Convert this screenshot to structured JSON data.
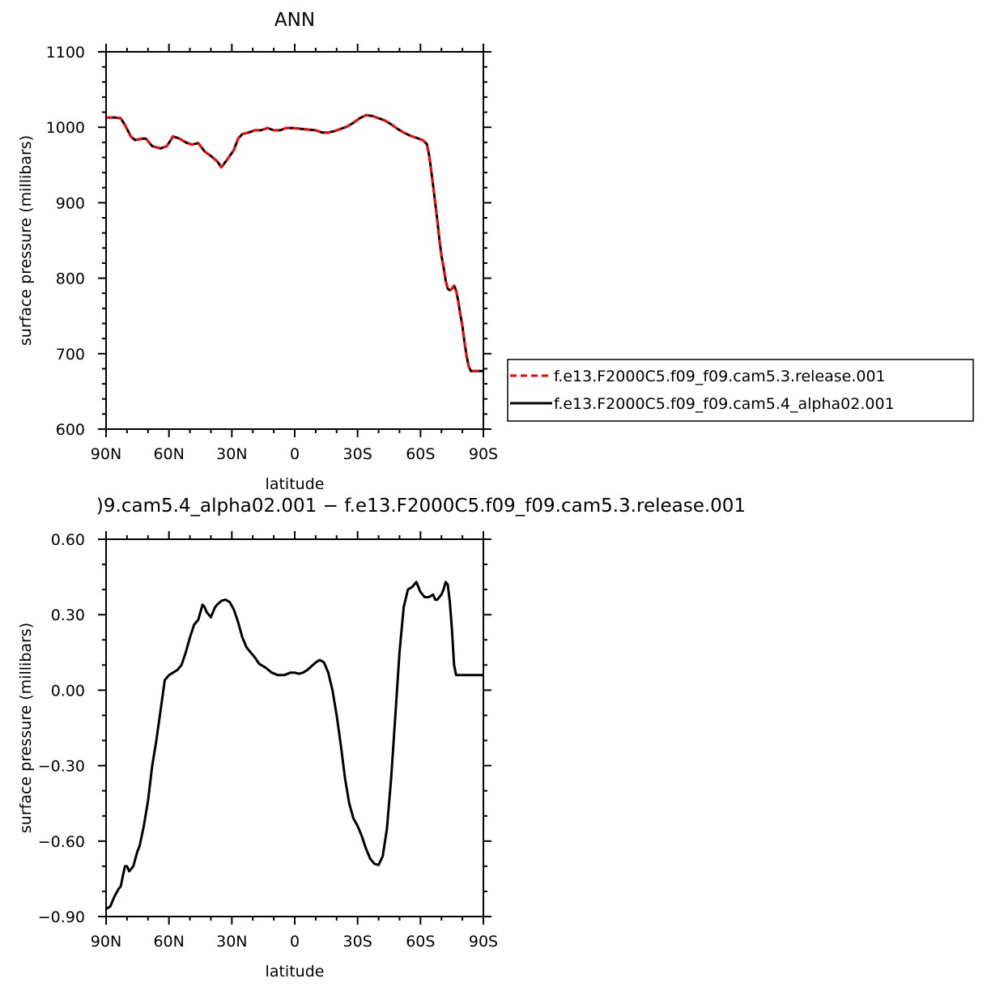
{
  "chart_data": [
    {
      "type": "line",
      "title": "ANN",
      "xlabel": "latitude",
      "ylabel": "surface pressure (millibars)",
      "xlim": [
        90,
        -90
      ],
      "ylim": [
        600,
        1100
      ],
      "x_ticks": [
        {
          "value": 90,
          "label": "90N"
        },
        {
          "value": 60,
          "label": "60N"
        },
        {
          "value": 30,
          "label": "30N"
        },
        {
          "value": 0,
          "label": "0"
        },
        {
          "value": -30,
          "label": "30S"
        },
        {
          "value": -60,
          "label": "60S"
        },
        {
          "value": -90,
          "label": "90S"
        }
      ],
      "y_ticks": [
        {
          "value": 1100,
          "label": "1100"
        },
        {
          "value": 1000,
          "label": "1000"
        },
        {
          "value": 900,
          "label": "900"
        },
        {
          "value": 800,
          "label": "800"
        },
        {
          "value": 700,
          "label": "700"
        },
        {
          "value": 600,
          "label": "600"
        }
      ],
      "legend_position": "right",
      "x": [
        90,
        86,
        83,
        81,
        78,
        76,
        73,
        71,
        68,
        64,
        61,
        58,
        55,
        52,
        49,
        46,
        43,
        40,
        37,
        35,
        32,
        29,
        27,
        25,
        22,
        19,
        16,
        13,
        10,
        7,
        4,
        1,
        -3,
        -6,
        -10,
        -13,
        -16,
        -19,
        -22,
        -25,
        -28,
        -31,
        -34,
        -37,
        -40,
        -43,
        -46,
        -49,
        -52,
        -55,
        -58,
        -61,
        -63,
        -64,
        -65,
        -66,
        -67,
        -68,
        -69,
        -70,
        -71,
        -72,
        -73,
        -74,
        -75,
        -76,
        -77,
        -78,
        -79,
        -80,
        -81,
        -82,
        -83,
        -84,
        -85,
        -86,
        -87,
        -88,
        -89,
        -90
      ],
      "series": [
        {
          "name": "f.e13.F2000C5.f09_f09.cam5.3.release.001",
          "color": "#ff0000",
          "dash": "dashed",
          "values": [
            1013,
            1013,
            1012,
            1003,
            987,
            983,
            985,
            985,
            975,
            972,
            975,
            988,
            985,
            980,
            977,
            979,
            968,
            962,
            955,
            947,
            958,
            970,
            985,
            991,
            993,
            996,
            996,
            999,
            996,
            996,
            999,
            999,
            998,
            997,
            996,
            993,
            993,
            995,
            998,
            1001,
            1006,
            1012,
            1016,
            1015,
            1012,
            1009,
            1004,
            998,
            993,
            989,
            986,
            983,
            978,
            965,
            945,
            923,
            900,
            878,
            852,
            830,
            815,
            797,
            786,
            784,
            786,
            790,
            784,
            770,
            752,
            737,
            715,
            697,
            683,
            677,
            677,
            677,
            677,
            677,
            677,
            677
          ]
        },
        {
          "name": "f.e13.F2000C5.f09_f09.cam5.4_alpha02.001",
          "color": "#000000",
          "dash": "solid",
          "values": [
            1013,
            1013,
            1012,
            1003,
            987,
            983,
            985,
            985,
            975,
            972,
            975,
            988,
            985,
            980,
            977,
            979,
            968,
            962,
            955,
            947,
            958,
            970,
            985,
            991,
            993,
            996,
            996,
            999,
            996,
            996,
            999,
            999,
            998,
            997,
            996,
            993,
            993,
            995,
            998,
            1001,
            1006,
            1012,
            1016,
            1015,
            1012,
            1009,
            1004,
            998,
            993,
            989,
            986,
            983,
            978,
            965,
            945,
            923,
            900,
            878,
            852,
            830,
            815,
            797,
            786,
            784,
            786,
            790,
            784,
            770,
            752,
            737,
            715,
            697,
            683,
            677,
            677,
            677,
            677,
            677,
            677,
            677
          ]
        }
      ]
    },
    {
      "type": "line",
      "title": ")9.cam5.4_alpha02.001 − f.e13.F2000C5.f09_f09.cam5.3.release.001",
      "xlabel": "latitude",
      "ylabel": "surface pressure (millibars)",
      "xlim": [
        90,
        -90
      ],
      "ylim": [
        -0.9,
        0.6
      ],
      "x_ticks": [
        {
          "value": 90,
          "label": "90N"
        },
        {
          "value": 60,
          "label": "60N"
        },
        {
          "value": 30,
          "label": "30N"
        },
        {
          "value": 0,
          "label": "0"
        },
        {
          "value": -30,
          "label": "30S"
        },
        {
          "value": -60,
          "label": "60S"
        },
        {
          "value": -90,
          "label": "90S"
        }
      ],
      "y_ticks": [
        {
          "value": 0.6,
          "label": "0.60"
        },
        {
          "value": 0.3,
          "label": "0.30"
        },
        {
          "value": 0.0,
          "label": "0.00"
        },
        {
          "value": -0.3,
          "label": "−0.30"
        },
        {
          "value": -0.6,
          "label": "−0.60"
        },
        {
          "value": -0.9,
          "label": "−0.90"
        }
      ],
      "x": [
        90,
        88,
        86,
        84,
        83,
        82,
        81,
        80,
        79,
        78,
        77,
        76,
        75,
        74,
        72,
        70,
        68,
        66,
        64,
        62,
        60,
        58,
        56,
        54,
        52,
        50,
        48,
        46,
        44,
        43,
        42,
        40,
        38,
        37,
        35,
        33,
        31,
        29,
        27,
        25,
        23,
        21,
        19,
        17,
        14,
        11,
        8,
        5,
        2,
        0,
        -2,
        -4,
        -6,
        -8,
        -10,
        -12,
        -14,
        -16,
        -18,
        -20,
        -22,
        -24,
        -26,
        -28,
        -30,
        -32,
        -34,
        -36,
        -38,
        -40,
        -42,
        -44,
        -46,
        -48,
        -50,
        -52,
        -54,
        -56,
        -58,
        -60,
        -62,
        -64,
        -66,
        -67,
        -68,
        -69,
        -70,
        -71,
        -72,
        -73,
        -74,
        -75,
        -76,
        -77,
        -78,
        -79,
        -80,
        -81,
        -82,
        -83,
        -84,
        -85,
        -86,
        -87,
        -88,
        -89,
        -90
      ],
      "series": [
        {
          "name": "",
          "color": "#000000",
          "dash": "solid",
          "values": [
            -0.87,
            -0.86,
            -0.82,
            -0.79,
            -0.78,
            -0.74,
            -0.7,
            -0.7,
            -0.72,
            -0.71,
            -0.7,
            -0.67,
            -0.64,
            -0.62,
            -0.54,
            -0.44,
            -0.3,
            -0.2,
            -0.08,
            0.04,
            0.06,
            0.07,
            0.08,
            0.1,
            0.15,
            0.21,
            0.26,
            0.28,
            0.34,
            0.33,
            0.31,
            0.29,
            0.33,
            0.34,
            0.355,
            0.36,
            0.35,
            0.32,
            0.27,
            0.21,
            0.17,
            0.15,
            0.13,
            0.105,
            0.09,
            0.07,
            0.06,
            0.06,
            0.07,
            0.07,
            0.065,
            0.07,
            0.08,
            0.095,
            0.11,
            0.12,
            0.11,
            0.07,
            0.0,
            -0.1,
            -0.22,
            -0.35,
            -0.45,
            -0.51,
            -0.54,
            -0.58,
            -0.63,
            -0.67,
            -0.69,
            -0.695,
            -0.66,
            -0.55,
            -0.35,
            -0.1,
            0.15,
            0.33,
            0.4,
            0.41,
            0.43,
            0.39,
            0.37,
            0.37,
            0.38,
            0.36,
            0.36,
            0.37,
            0.38,
            0.4,
            0.43,
            0.42,
            0.35,
            0.24,
            0.1,
            0.06,
            0.06,
            0.06,
            0.06,
            0.06,
            0.06,
            0.06,
            0.06,
            0.06,
            0.06,
            0.06,
            0.06,
            0.06,
            0.06
          ]
        }
      ]
    }
  ]
}
